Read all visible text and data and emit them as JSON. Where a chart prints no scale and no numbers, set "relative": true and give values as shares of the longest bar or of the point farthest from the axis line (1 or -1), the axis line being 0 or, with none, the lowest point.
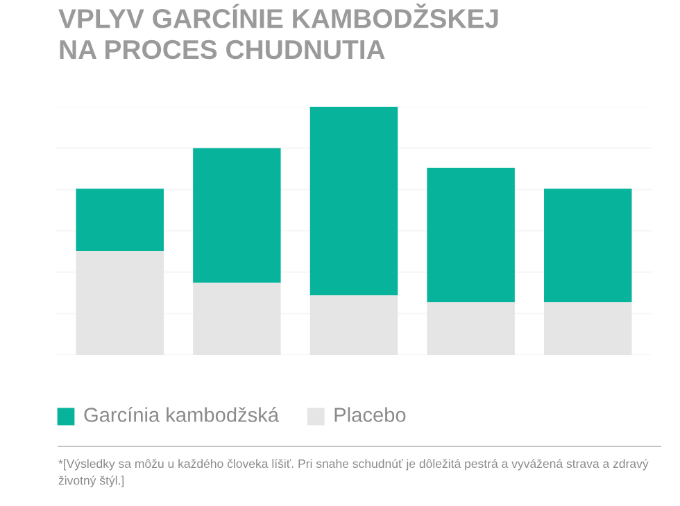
{
  "chart_data": {
    "type": "bar",
    "title": "VPLYV GARCÍNIE KAMBODŽSKEJ\nNA PROCES CHUDNUTIA",
    "categories": [
      null,
      null,
      null,
      null,
      null
    ],
    "relative": true,
    "stacked": true,
    "grid": "y",
    "legend": "bottom left",
    "series": [
      {
        "name": "Placebo",
        "color": "#e5e5e5",
        "values": [
          0.419,
          0.291,
          0.24,
          0.212,
          0.212
        ]
      },
      {
        "name": "Garcínia kambodžská",
        "color": "#08b39b",
        "values": [
          0.251,
          0.542,
          0.76,
          0.542,
          0.458
        ]
      }
    ],
    "annotations": [
      "*[Výsledky sa môžu u každého človeka líšiť. Pri snahe schudnúť je dôležitá pestrá a vyvážená strava a zdravý životný štýl.]"
    ]
  }
}
